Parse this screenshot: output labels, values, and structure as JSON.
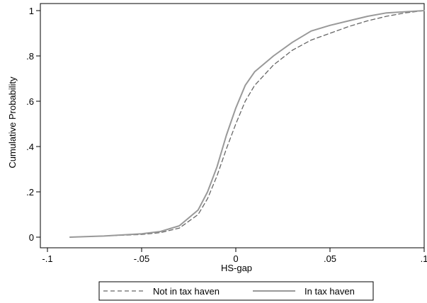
{
  "chart_data": {
    "type": "line",
    "title": "",
    "xlabel": "HS-gap",
    "ylabel": "Cumulative Probability",
    "xlim": [
      -0.1,
      0.1
    ],
    "ylim": [
      0,
      1
    ],
    "x_ticks": [
      {
        "value": -0.1,
        "label": "-.1"
      },
      {
        "value": -0.05,
        "label": "-.05"
      },
      {
        "value": 0,
        "label": "0"
      },
      {
        "value": 0.05,
        "label": ".05"
      },
      {
        "value": 0.1,
        "label": ".1"
      }
    ],
    "y_ticks": [
      {
        "value": 0,
        "label": "0"
      },
      {
        "value": 0.2,
        "label": ".2"
      },
      {
        "value": 0.4,
        "label": ".4"
      },
      {
        "value": 0.6,
        "label": ".6"
      },
      {
        "value": 0.8,
        "label": ".8"
      },
      {
        "value": 1,
        "label": "1"
      }
    ],
    "grid": false,
    "legend_position": "bottom",
    "series": [
      {
        "name": "Not in tax haven",
        "style": "dashed",
        "color": "#666666",
        "points": [
          [
            -0.088,
            0.0
          ],
          [
            -0.07,
            0.005
          ],
          [
            -0.05,
            0.012
          ],
          [
            -0.04,
            0.02
          ],
          [
            -0.03,
            0.04
          ],
          [
            -0.02,
            0.1
          ],
          [
            -0.015,
            0.17
          ],
          [
            -0.01,
            0.27
          ],
          [
            -0.005,
            0.39
          ],
          [
            0.0,
            0.5
          ],
          [
            0.005,
            0.6
          ],
          [
            0.01,
            0.67
          ],
          [
            0.02,
            0.76
          ],
          [
            0.03,
            0.825
          ],
          [
            0.04,
            0.87
          ],
          [
            0.05,
            0.9
          ],
          [
            0.06,
            0.93
          ],
          [
            0.07,
            0.955
          ],
          [
            0.08,
            0.975
          ],
          [
            0.09,
            0.99
          ],
          [
            0.1,
            1.0
          ]
        ]
      },
      {
        "name": "In tax haven",
        "style": "solid",
        "color": "#999999",
        "points": [
          [
            -0.088,
            0.0
          ],
          [
            -0.07,
            0.005
          ],
          [
            -0.05,
            0.015
          ],
          [
            -0.04,
            0.025
          ],
          [
            -0.03,
            0.05
          ],
          [
            -0.02,
            0.12
          ],
          [
            -0.015,
            0.2
          ],
          [
            -0.01,
            0.31
          ],
          [
            -0.005,
            0.45
          ],
          [
            0.0,
            0.57
          ],
          [
            0.005,
            0.67
          ],
          [
            0.01,
            0.73
          ],
          [
            0.02,
            0.8
          ],
          [
            0.03,
            0.86
          ],
          [
            0.04,
            0.91
          ],
          [
            0.05,
            0.935
          ],
          [
            0.06,
            0.955
          ],
          [
            0.07,
            0.975
          ],
          [
            0.08,
            0.99
          ],
          [
            0.09,
            0.995
          ],
          [
            0.1,
            1.0
          ]
        ]
      }
    ]
  }
}
